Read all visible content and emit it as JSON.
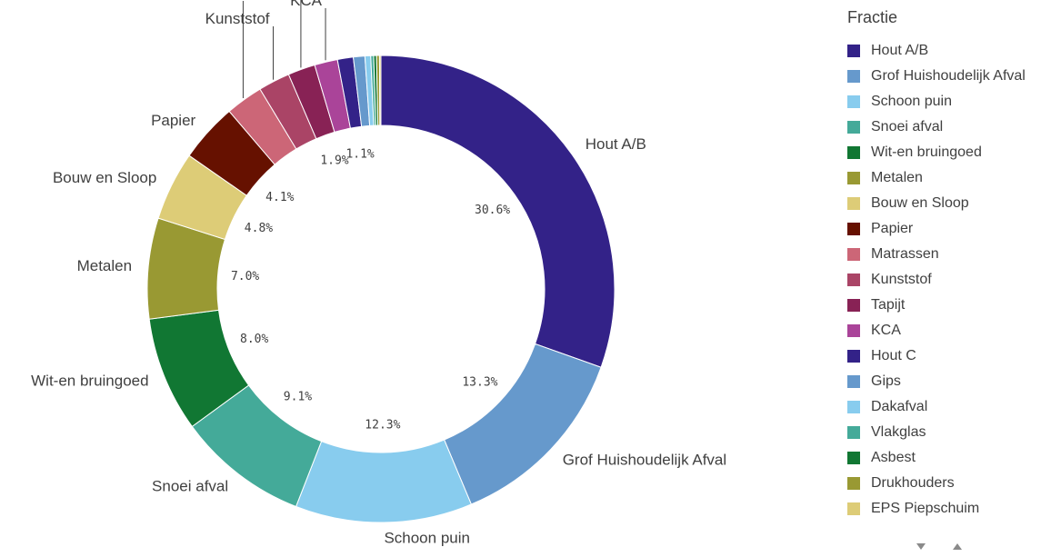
{
  "chart_data": {
    "type": "pie",
    "subtype": "donut",
    "legend_title": "Fractie",
    "legend_position": "right",
    "slices": [
      {
        "name": "Hout A/B",
        "value": 30.6,
        "color": "#332288",
        "label": "Hout A/B",
        "pct_label": "30.6%"
      },
      {
        "name": "Grof Huishoudelijk Afval",
        "value": 13.3,
        "color": "#6699cc",
        "label": "Grof Huishoudelijk Afval",
        "pct_label": "13.3%"
      },
      {
        "name": "Schoon puin",
        "value": 12.3,
        "color": "#88ccee",
        "label": "Schoon puin",
        "pct_label": "12.3%"
      },
      {
        "name": "Snoei afval",
        "value": 9.1,
        "color": "#44aa99",
        "label": "Snoei afval",
        "pct_label": "9.1%"
      },
      {
        "name": "Wit-en bruingoed",
        "value": 8.0,
        "color": "#117733",
        "label": "Wit-en bruingoed",
        "pct_label": "8.0%"
      },
      {
        "name": "Metalen",
        "value": 7.0,
        "color": "#999933",
        "label": "Metalen",
        "pct_label": "7.0%"
      },
      {
        "name": "Bouw en Sloop",
        "value": 4.8,
        "color": "#ddcc77",
        "label": "Bouw en Sloop",
        "pct_label": "4.8%"
      },
      {
        "name": "Papier",
        "value": 4.1,
        "color": "#661100",
        "label": "Papier",
        "pct_label": "4.1%"
      },
      {
        "name": "Matrassen",
        "value": 2.6,
        "color": "#cc6677",
        "label": "Matrassen",
        "pct_label": ""
      },
      {
        "name": "Kunststof",
        "value": 2.2,
        "color": "#aa4466",
        "label": "Kunststof",
        "pct_label": ""
      },
      {
        "name": "Tapijt",
        "value": 1.9,
        "color": "#882255",
        "label": "Tapijt",
        "pct_label": "1.9%"
      },
      {
        "name": "KCA",
        "value": 1.6,
        "color": "#aa4499",
        "label": "KCA",
        "pct_label": ""
      },
      {
        "name": "Hout C",
        "value": 1.1,
        "color": "#332288",
        "label": "",
        "pct_label": "1.1%"
      },
      {
        "name": "Gips",
        "value": 0.8,
        "color": "#6699cc",
        "label": "",
        "pct_label": ""
      },
      {
        "name": "Dakafval",
        "value": 0.4,
        "color": "#88ccee",
        "label": "",
        "pct_label": ""
      },
      {
        "name": "Vlakglas",
        "value": 0.2,
        "color": "#44aa99",
        "label": "",
        "pct_label": ""
      },
      {
        "name": "Asbest",
        "value": 0.2,
        "color": "#117733",
        "label": "",
        "pct_label": ""
      },
      {
        "name": "Drukhouders",
        "value": 0.2,
        "color": "#999933",
        "label": "",
        "pct_label": ""
      },
      {
        "name": "EPS Piepschuim",
        "value": 0.1,
        "color": "#ddcc77",
        "label": "",
        "pct_label": ""
      }
    ]
  }
}
